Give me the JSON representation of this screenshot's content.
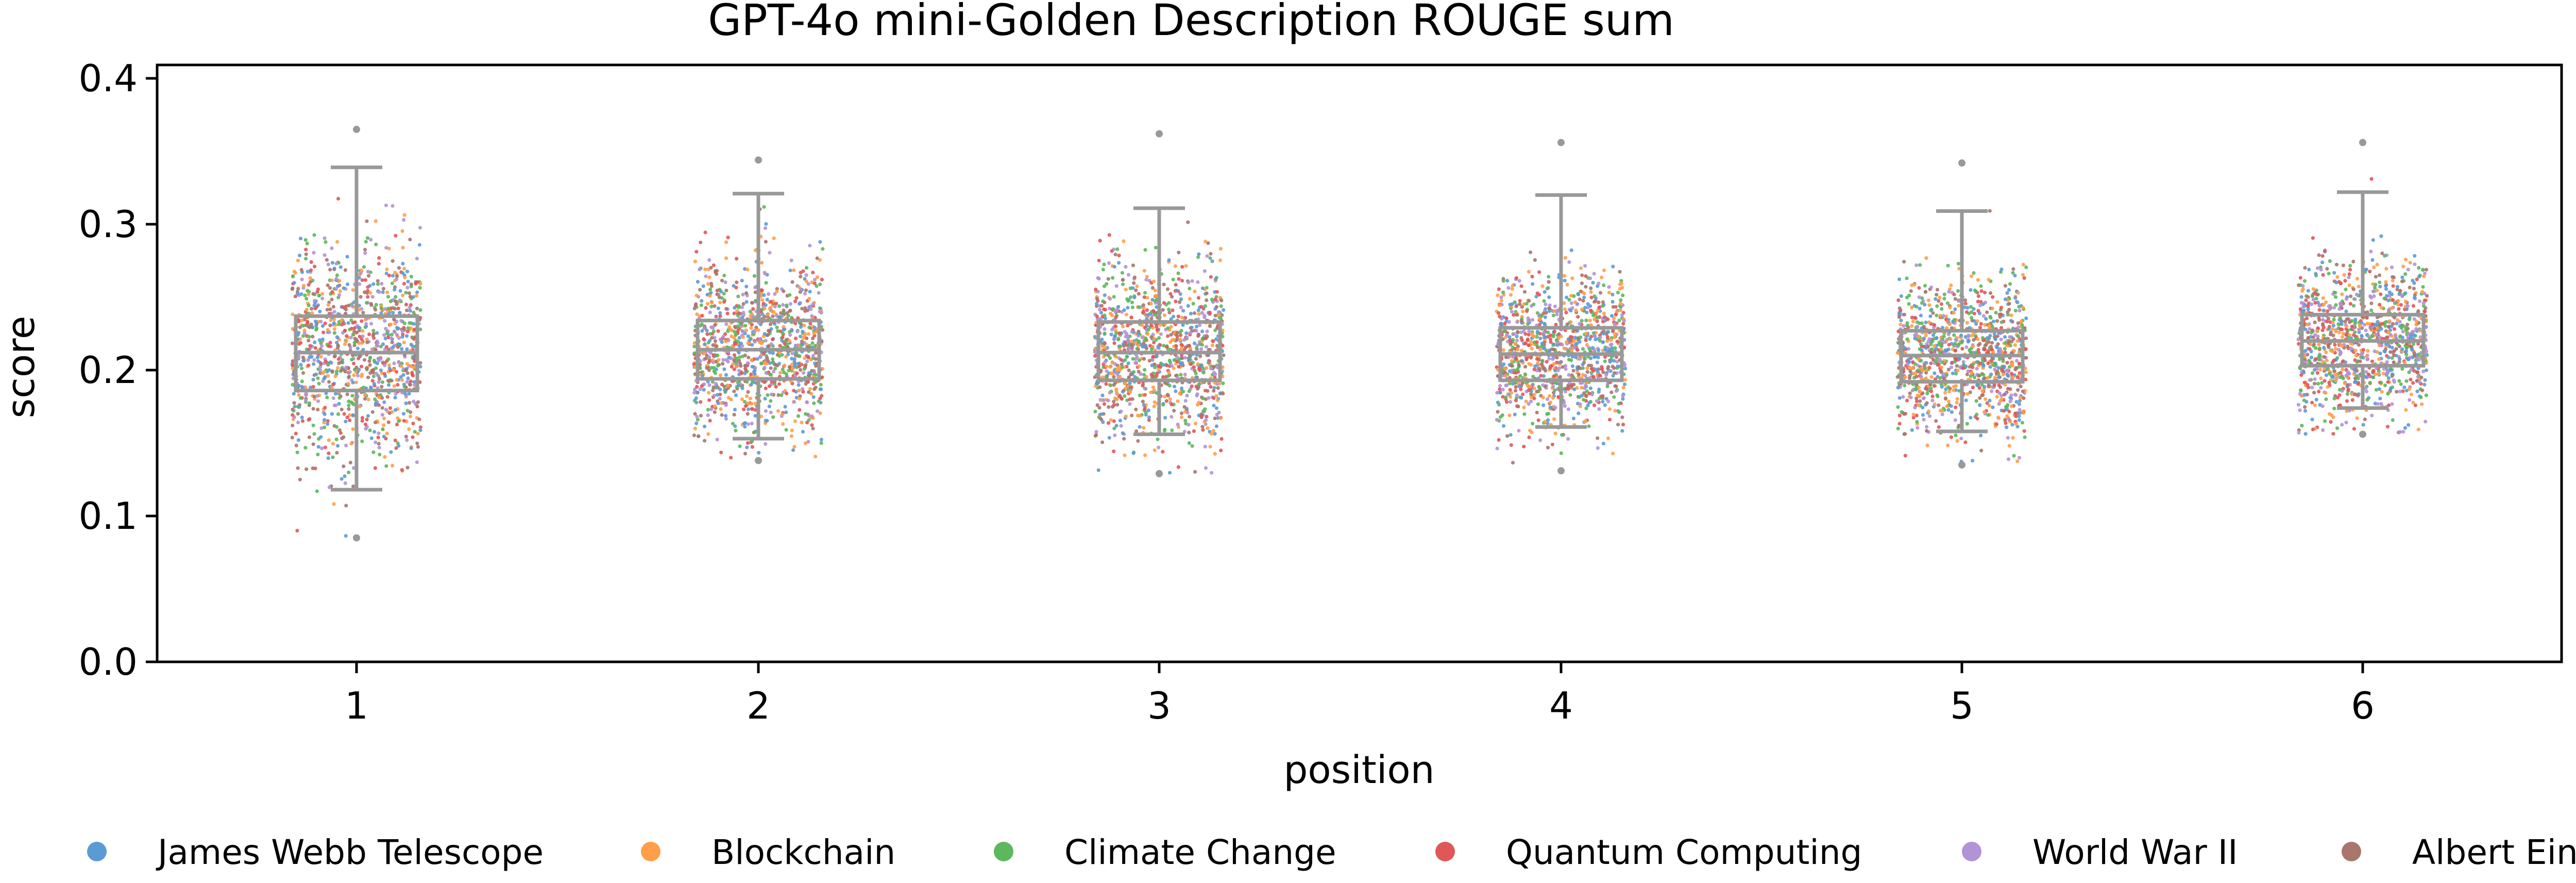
{
  "chart_data": {
    "type": "scatter",
    "subtype": "strip plot with box plot overlay",
    "title": "GPT-4o mini-Golden Description ROUGE sum",
    "xlabel": "position",
    "ylabel": "score",
    "categories": [
      "1",
      "2",
      "3",
      "4",
      "5",
      "6"
    ],
    "yticks": [
      "0.0",
      "0.1",
      "0.2",
      "0.3",
      "0.4"
    ],
    "ylim": [
      0,
      0.41
    ],
    "grid": false,
    "legend_position": "bottom",
    "box_color": "#999999",
    "series": [
      {
        "name": "James Webb Telescope",
        "color": "#5b9bd5"
      },
      {
        "name": "Blockchain",
        "color": "#ff9f4a"
      },
      {
        "name": "Climate Change",
        "color": "#5cb85c"
      },
      {
        "name": "Quantum Computing",
        "color": "#e15759"
      },
      {
        "name": "World War II",
        "color": "#b392d6"
      },
      {
        "name": "Albert Einstein",
        "color": "#a9766e"
      }
    ],
    "boxes": [
      {
        "category": "1",
        "whisker_low": 0.118,
        "q1": 0.186,
        "median": 0.212,
        "q3": 0.237,
        "whisker_high": 0.339,
        "data_min": 0.085,
        "data_max": 0.365
      },
      {
        "category": "2",
        "whisker_low": 0.153,
        "q1": 0.194,
        "median": 0.214,
        "q3": 0.234,
        "whisker_high": 0.321,
        "data_min": 0.138,
        "data_max": 0.344
      },
      {
        "category": "3",
        "whisker_low": 0.156,
        "q1": 0.193,
        "median": 0.212,
        "q3": 0.233,
        "whisker_high": 0.311,
        "data_min": 0.129,
        "data_max": 0.362
      },
      {
        "category": "4",
        "whisker_low": 0.161,
        "q1": 0.193,
        "median": 0.211,
        "q3": 0.229,
        "whisker_high": 0.32,
        "data_min": 0.131,
        "data_max": 0.356
      },
      {
        "category": "5",
        "whisker_low": 0.158,
        "q1": 0.192,
        "median": 0.21,
        "q3": 0.227,
        "whisker_high": 0.309,
        "data_min": 0.135,
        "data_max": 0.342
      },
      {
        "category": "6",
        "whisker_low": 0.174,
        "q1": 0.203,
        "median": 0.22,
        "q3": 0.238,
        "whisker_high": 0.322,
        "data_min": 0.156,
        "data_max": 0.356
      }
    ]
  }
}
